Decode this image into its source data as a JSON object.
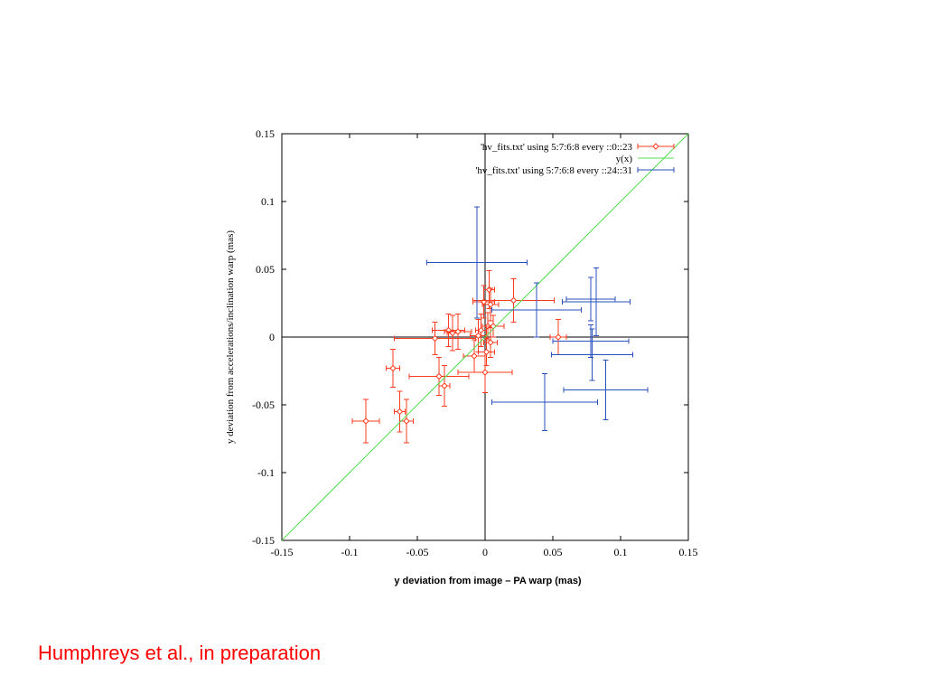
{
  "chart_data": {
    "type": "scatter",
    "title": "",
    "xlabel": "y deviation from image – PA warp (mas)",
    "ylabel": "y deviation from accelerations/inclination warp (mas)",
    "xlim": [
      -0.15,
      0.15
    ],
    "ylim": [
      -0.15,
      0.15
    ],
    "x_ticks": [
      "-0.15",
      "-0.1",
      "-0.05",
      "0",
      "0.05",
      "0.1",
      "0.15"
    ],
    "y_ticks": [
      "0.15",
      "0.1",
      "0.05",
      "0",
      "-0.05",
      "-0.1",
      "-0.15"
    ],
    "legend_position": "top-right",
    "series": [
      {
        "name": "'hv_fits.txt' using 5:7:6:8 every ::0::23",
        "color": "#ff3b1f",
        "marker": "diamond",
        "points": [
          {
            "x": -0.088,
            "y": -0.062,
            "xerr": 0.01,
            "yerr": 0.016
          },
          {
            "x": -0.068,
            "y": -0.023,
            "xerr": 0.005,
            "yerr": 0.014
          },
          {
            "x": -0.063,
            "y": -0.055,
            "xerr": 0.004,
            "yerr": 0.015
          },
          {
            "x": -0.058,
            "y": -0.062,
            "xerr": 0.005,
            "yerr": 0.016
          },
          {
            "x": -0.037,
            "y": -0.001,
            "xerr": 0.03,
            "yerr": 0.012
          },
          {
            "x": -0.034,
            "y": -0.029,
            "xerr": 0.022,
            "yerr": 0.014
          },
          {
            "x": -0.03,
            "y": -0.036,
            "xerr": 0.004,
            "yerr": 0.015
          },
          {
            "x": -0.027,
            "y": 0.005,
            "xerr": 0.012,
            "yerr": 0.012
          },
          {
            "x": -0.024,
            "y": 0.003,
            "xerr": 0.004,
            "yerr": 0.013
          },
          {
            "x": -0.02,
            "y": 0.004,
            "xerr": 0.01,
            "yerr": 0.013
          },
          {
            "x": -0.008,
            "y": -0.014,
            "xerr": 0.008,
            "yerr": 0.012
          },
          {
            "x": -0.005,
            "y": 0.001,
            "xerr": 0.006,
            "yerr": 0.012
          },
          {
            "x": -0.003,
            "y": 0.005,
            "xerr": 0.004,
            "yerr": 0.012
          },
          {
            "x": -0.001,
            "y": 0.026,
            "xerr": 0.008,
            "yerr": 0.012
          },
          {
            "x": 0.0,
            "y": -0.026,
            "xerr": 0.02,
            "yerr": 0.015
          },
          {
            "x": 0.001,
            "y": -0.011,
            "xerr": 0.006,
            "yerr": 0.01
          },
          {
            "x": 0.002,
            "y": 0.008,
            "xerr": 0.004,
            "yerr": 0.01
          },
          {
            "x": 0.003,
            "y": 0.035,
            "xerr": 0.004,
            "yerr": 0.014
          },
          {
            "x": 0.004,
            "y": 0.024,
            "xerr": 0.006,
            "yerr": 0.012
          },
          {
            "x": 0.004,
            "y": -0.004,
            "xerr": 0.005,
            "yerr": 0.011
          },
          {
            "x": 0.006,
            "y": 0.008,
            "xerr": 0.008,
            "yerr": 0.008
          },
          {
            "x": 0.021,
            "y": 0.027,
            "xerr": 0.03,
            "yerr": 0.016
          },
          {
            "x": 0.054,
            "y": 0.0,
            "xerr": 0.006,
            "yerr": 0.013
          }
        ]
      },
      {
        "name": "y(x)",
        "color": "#50e050",
        "type": "line",
        "x": [
          -0.15,
          0.15
        ],
        "y": [
          -0.15,
          0.15
        ]
      },
      {
        "name": "'hv_fits.txt' using 5:7:6:8 every ::24::31",
        "color": "#2a52be",
        "marker": "none",
        "points": [
          {
            "x": -0.006,
            "y": 0.055,
            "xerr": 0.037,
            "yerr": 0.041
          },
          {
            "x": 0.038,
            "y": 0.02,
            "xerr": 0.033,
            "yerr": 0.02
          },
          {
            "x": 0.044,
            "y": -0.048,
            "xerr": 0.039,
            "yerr": 0.021
          },
          {
            "x": 0.078,
            "y": 0.028,
            "xerr": 0.018,
            "yerr": 0.016
          },
          {
            "x": 0.082,
            "y": 0.026,
            "xerr": 0.025,
            "yerr": 0.025
          },
          {
            "x": 0.078,
            "y": -0.003,
            "xerr": 0.028,
            "yerr": 0.012
          },
          {
            "x": 0.079,
            "y": -0.013,
            "xerr": 0.03,
            "yerr": 0.019
          },
          {
            "x": 0.089,
            "y": -0.039,
            "xerr": 0.031,
            "yerr": 0.022
          }
        ]
      }
    ]
  },
  "legend": {
    "entries": [
      {
        "label": "'hv_fits.txt' using 5:7:6:8 every ::0::23"
      },
      {
        "label": "y(x)"
      },
      {
        "label": "'hv_fits.txt' using 5:7:6:8 every ::24::31"
      }
    ]
  },
  "footer": {
    "credit": "Humphreys et al., in preparation"
  }
}
